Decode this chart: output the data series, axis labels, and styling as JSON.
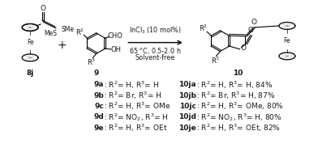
{
  "background_color": "#ffffff",
  "fig_width": 3.92,
  "fig_height": 1.88,
  "dpi": 100,
  "compounds_left": [
    {
      "label": "9a",
      "text": ": R$^{2}$= H, R$^{3}$= H"
    },
    {
      "label": "9b",
      "text": ": R$^{2}$= Br, R$^{3}$= H"
    },
    {
      "label": "9c",
      "text": ": R$^{2}$= H, R$^{3}$= OMe"
    },
    {
      "label": "9d",
      "text": ": R$^{2}$= NO$_{2}$, R$^{3}$= H"
    },
    {
      "label": "9e",
      "text": ": R$^{2}$= H, R$^{3}$= OEt"
    }
  ],
  "compounds_right": [
    {
      "label": "10ja",
      "text": ": R$^{2}$= H, R$^{3}$= H, 84%"
    },
    {
      "label": "10jb",
      "text": ": R$^{2}$= Br, R$^{3}$= H, 87%"
    },
    {
      "label": "10jc",
      "text": ": R$^{2}$= H, R$^{3}$= OMe, 80%"
    },
    {
      "label": "10jd",
      "text": ": R$^{2}$= NO$_{2}$, R$^{3}$= H, 80%"
    },
    {
      "label": "10je",
      "text": ": R$^{2}$= H, R$^{3}$= OEt, 82%"
    }
  ],
  "reaction_conditions": [
    "InCl$_{3}$ (10 mol%)",
    "65 $^{o}$C, 0.5-2.0 h",
    "Solvent-free"
  ],
  "font_size_labels": 6.5,
  "font_size_conditions": 5.8,
  "text_color": "#1a1a1a"
}
